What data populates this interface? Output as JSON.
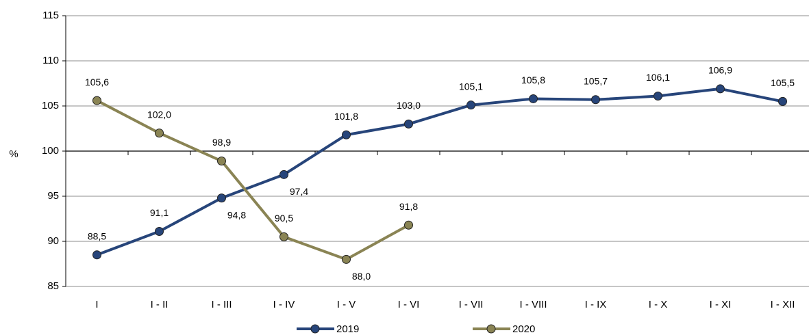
{
  "chart_data": {
    "type": "line",
    "ylabel": "%",
    "categories": [
      "I",
      "I - II",
      "I - III",
      "I - IV",
      "I - V",
      "I - VI",
      "I - VII",
      "I - VIII",
      "I - IX",
      "I - X",
      "I - XI",
      "I - XII"
    ],
    "series": [
      {
        "name": "2019",
        "color": "#27457a",
        "values": [
          88.5,
          91.1,
          94.8,
          97.4,
          101.8,
          103.0,
          105.1,
          105.8,
          105.7,
          106.1,
          106.9,
          105.5
        ],
        "value_labels": [
          "88,5",
          "91,1",
          "94,8",
          "97,4",
          "101,8",
          "103,0",
          "105,1",
          "105,8",
          "105,7",
          "106,1",
          "106,9",
          "105,5"
        ]
      },
      {
        "name": "2020",
        "color": "#8a8454",
        "values": [
          105.6,
          102.0,
          98.9,
          90.5,
          88.0,
          91.8,
          null,
          null,
          null,
          null,
          null,
          null
        ],
        "value_labels": [
          "105,6",
          "102,0",
          "98,9",
          "90,5",
          "88,0",
          "91,8",
          null,
          null,
          null,
          null,
          null,
          null
        ]
      }
    ],
    "ylim": [
      85,
      115
    ],
    "yticks": [
      85,
      90,
      95,
      100,
      105,
      110,
      115
    ],
    "grid": true,
    "xaxis_cross": 100,
    "legend": "bottom"
  }
}
